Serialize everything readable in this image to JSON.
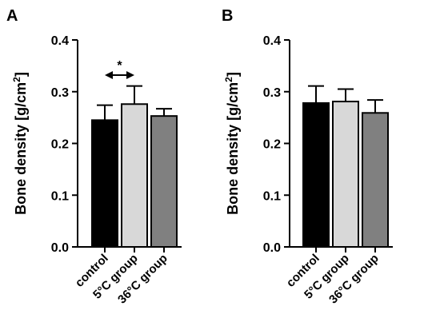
{
  "chart_data": [
    {
      "panel_label": "A",
      "type": "bar",
      "categories": [
        "control",
        "5°C group",
        "36°C group"
      ],
      "values": [
        0.245,
        0.276,
        0.253
      ],
      "error_bars": [
        0.029,
        0.035,
        0.014
      ],
      "bar_colors": [
        "#000000",
        "#d8d8d8",
        "#808080"
      ],
      "ylabel": "Bone density [g/cm",
      "ylabel_superscript": "2",
      "ylabel_suffix": "]",
      "ylim": [
        0.0,
        0.4
      ],
      "yticks": [
        0.0,
        0.1,
        0.2,
        0.3,
        0.4
      ],
      "ytick_labels": [
        "0.0",
        "0.1",
        "0.2",
        "0.3",
        "0.4"
      ],
      "significance": {
        "between": [
          "control",
          "5°C group"
        ],
        "marker": "*",
        "arrow": "double-headed"
      }
    },
    {
      "panel_label": "B",
      "type": "bar",
      "categories": [
        "control",
        "5°C group",
        "36°C group"
      ],
      "values": [
        0.278,
        0.281,
        0.259
      ],
      "error_bars": [
        0.033,
        0.024,
        0.025
      ],
      "bar_colors": [
        "#000000",
        "#d8d8d8",
        "#808080"
      ],
      "ylabel": "Bone density [g/cm",
      "ylabel_superscript": "2",
      "ylabel_suffix": "]",
      "ylim": [
        0.0,
        0.4
      ],
      "yticks": [
        0.0,
        0.1,
        0.2,
        0.3,
        0.4
      ],
      "ytick_labels": [
        "0.0",
        "0.1",
        "0.2",
        "0.3",
        "0.4"
      ]
    }
  ]
}
